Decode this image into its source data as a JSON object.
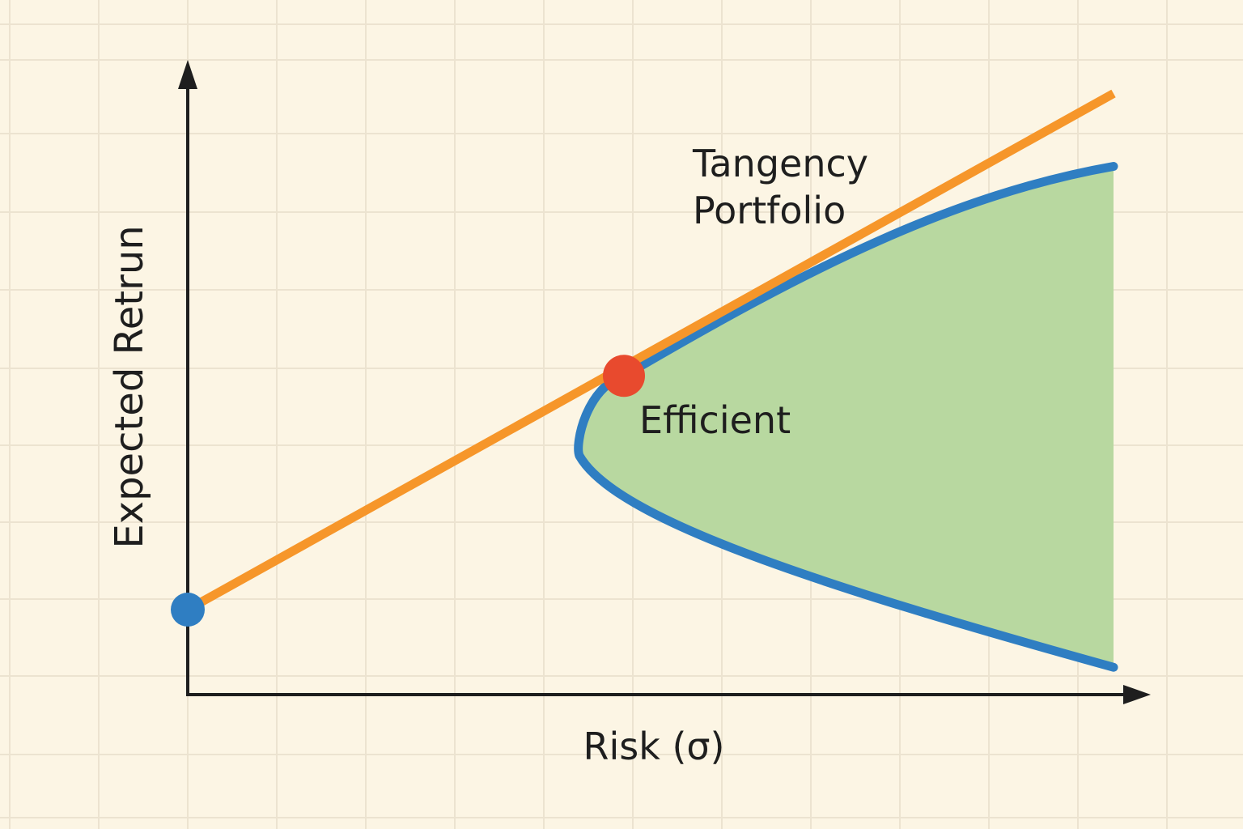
{
  "colors": {
    "background": "#fcf5e4",
    "grid": "#ece3d0",
    "axis": "#1e1e1e",
    "cml": "#f6962a",
    "frontier": "#2f7ec2",
    "region_fill": "#b8d8a0",
    "risk_free_point": "#2f7ec2",
    "tangency_point": "#e84a2e"
  },
  "labels": {
    "y_axis": "Expected Retrun",
    "x_axis": "Risk (σ)",
    "tangency_line1": "Tangency",
    "tangency_line2": "Portfolio",
    "region": "Efficient"
  },
  "chart_data": {
    "type": "line",
    "title": "",
    "xlabel": "Risk (σ)",
    "ylabel": "Expected Retrun",
    "grid": true,
    "xlim": [
      0,
      10
    ],
    "ylim": [
      0,
      10
    ],
    "series": [
      {
        "role": "capital-market-line",
        "x": [
          0.0,
          10.4
        ],
        "y": [
          1.4,
          9.9
        ]
      },
      {
        "role": "efficient-frontier",
        "vertex": [
          4.4,
          4.2
        ],
        "tangency": [
          4.9,
          5.25
        ],
        "upper_end": [
          10.4,
          8.7
        ],
        "lower_end": [
          10.4,
          0.45
        ]
      }
    ],
    "points": [
      {
        "role": "risk-free",
        "x": 0.0,
        "y": 1.4
      },
      {
        "role": "tangency-portfolio",
        "x": 4.9,
        "y": 5.25
      }
    ]
  }
}
